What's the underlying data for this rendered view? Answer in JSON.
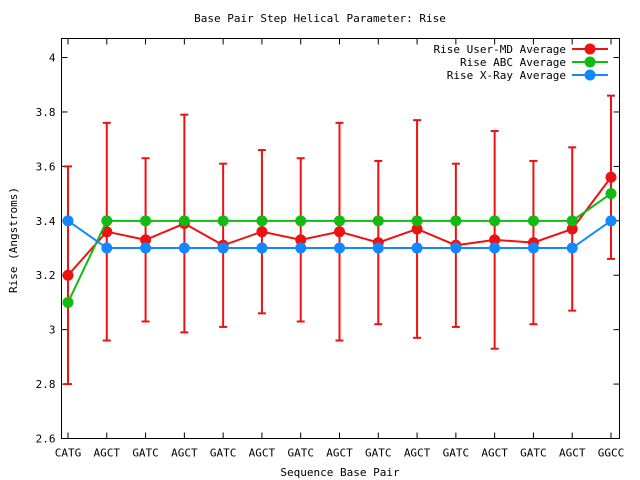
{
  "chart_data": {
    "type": "line",
    "title": "Base Pair Step Helical Parameter: Rise",
    "xlabel": "Sequence Base Pair",
    "ylabel": "Rise (Angstroms)",
    "categories": [
      "CATG",
      "AGCT",
      "GATC",
      "AGCT",
      "GATC",
      "AGCT",
      "GATC",
      "AGCT",
      "GATC",
      "AGCT",
      "GATC",
      "AGCT",
      "GATC",
      "AGCT",
      "GGCC"
    ],
    "ylim": [
      2.6,
      4.07
    ],
    "yticks": [
      2.6,
      2.8,
      3.0,
      3.2,
      3.4,
      3.6,
      3.8,
      4.0
    ],
    "ytick_labels": [
      "2.6",
      "2.8",
      "3",
      "3.2",
      "3.4",
      "3.6",
      "3.8",
      "4"
    ],
    "legend_position": "top-right",
    "grid": false,
    "series": [
      {
        "name": "Rise User-MD Average",
        "color": "#ee1111",
        "values": [
          3.2,
          3.36,
          3.33,
          3.39,
          3.31,
          3.36,
          3.33,
          3.36,
          3.32,
          3.37,
          3.31,
          3.33,
          3.32,
          3.37,
          3.56
        ],
        "error_low": [
          2.8,
          2.96,
          3.03,
          2.99,
          3.01,
          3.06,
          3.03,
          2.96,
          3.02,
          2.97,
          3.01,
          2.93,
          3.02,
          3.07,
          3.26
        ],
        "error_high": [
          3.6,
          3.76,
          3.63,
          3.79,
          3.61,
          3.66,
          3.63,
          3.76,
          3.62,
          3.77,
          3.61,
          3.73,
          3.62,
          3.67,
          3.86
        ]
      },
      {
        "name": "Rise ABC Average",
        "color": "#11bb11",
        "values": [
          3.1,
          3.4,
          3.4,
          3.4,
          3.4,
          3.4,
          3.4,
          3.4,
          3.4,
          3.4,
          3.4,
          3.4,
          3.4,
          3.4,
          3.5
        ]
      },
      {
        "name": "Rise X-Ray Average",
        "color": "#1188ff",
        "values": [
          3.4,
          3.3,
          3.3,
          3.3,
          3.3,
          3.3,
          3.3,
          3.3,
          3.3,
          3.3,
          3.3,
          3.3,
          3.3,
          3.3,
          3.4
        ]
      }
    ]
  }
}
